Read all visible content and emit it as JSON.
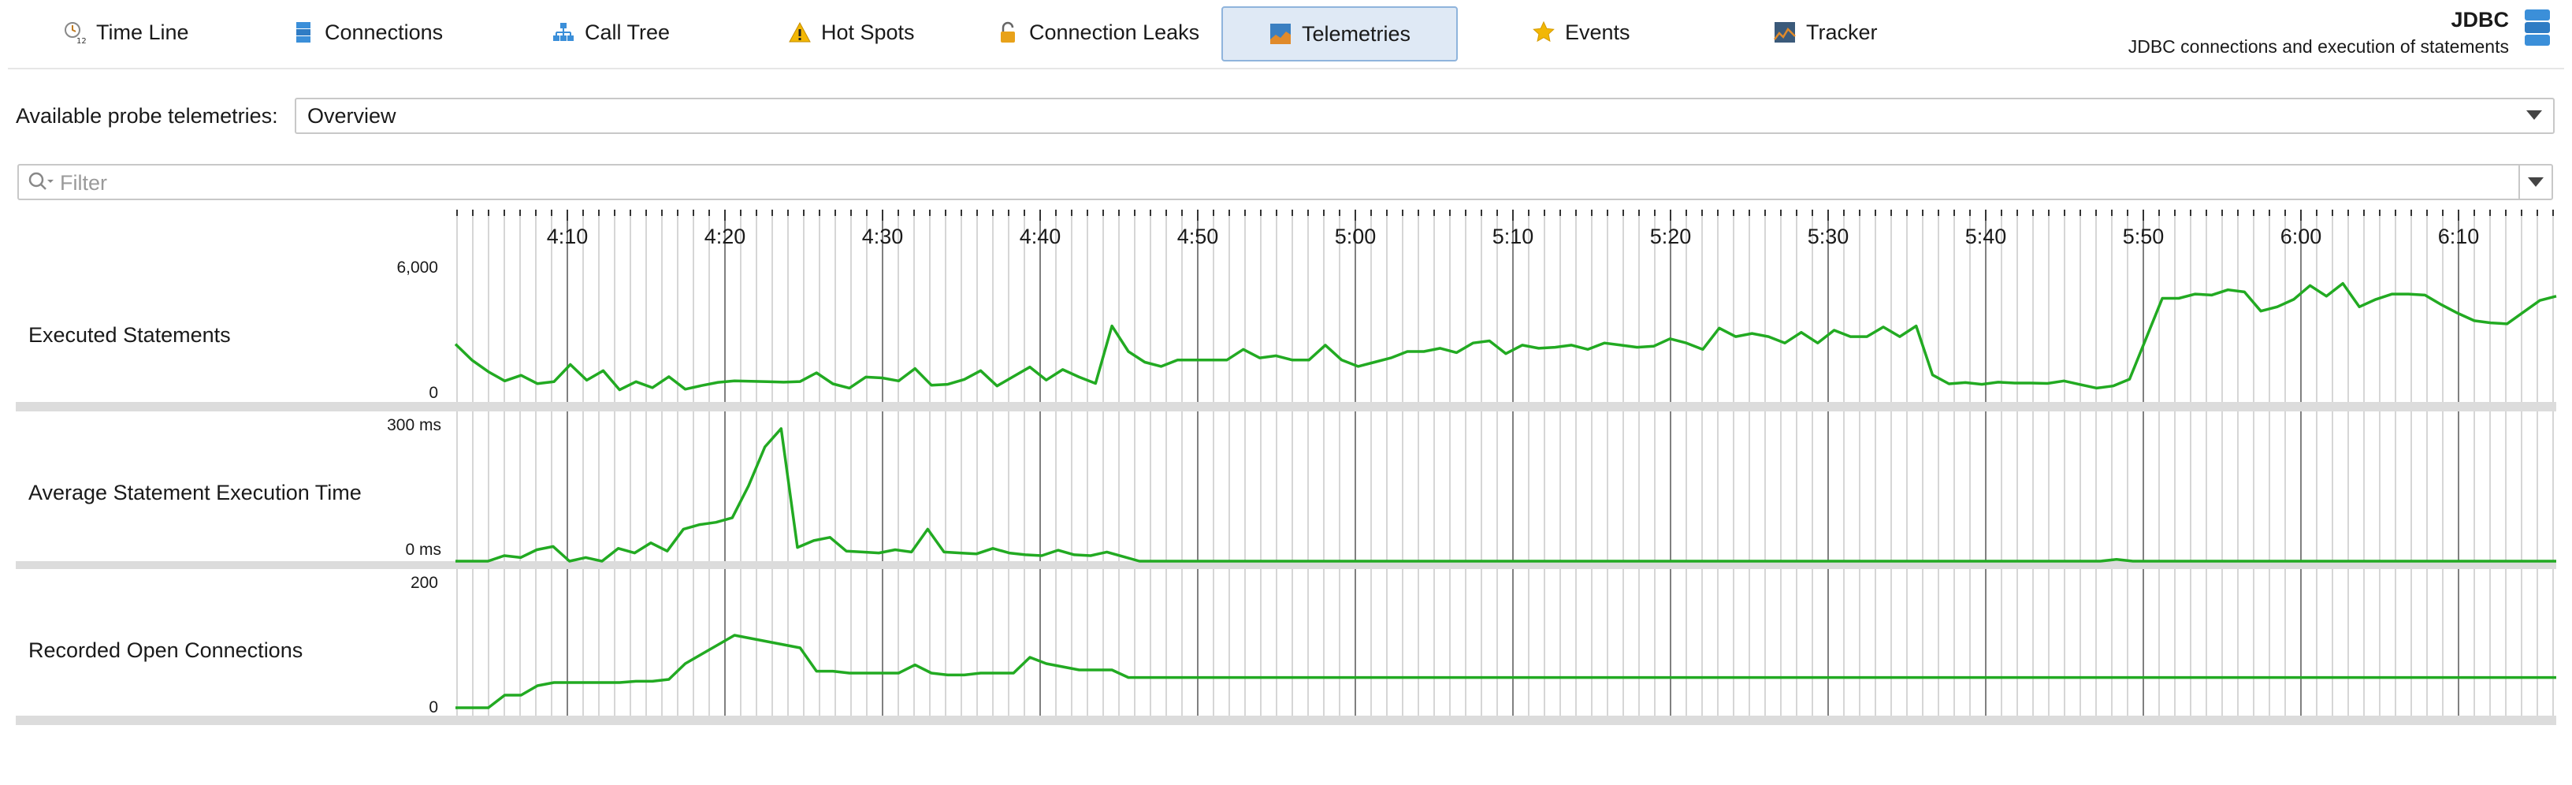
{
  "tabs": [
    {
      "label": "Time Line",
      "icon": "timeline-icon"
    },
    {
      "label": "Connections",
      "icon": "connections-icon"
    },
    {
      "label": "Call Tree",
      "icon": "call-tree-icon"
    },
    {
      "label": "Hot Spots",
      "icon": "warning-icon"
    },
    {
      "label": "Connection Leaks",
      "icon": "lock-icon"
    },
    {
      "label": "Telemetries",
      "icon": "telemetries-icon",
      "active": true
    },
    {
      "label": "Events",
      "icon": "star-icon"
    },
    {
      "label": "Tracker",
      "icon": "tracker-icon"
    }
  ],
  "module": {
    "title": "JDBC",
    "subtitle": "JDBC connections and execution of statements",
    "icon": "database-icon"
  },
  "probe": {
    "label": "Available probe telemetries:",
    "value": "Overview"
  },
  "filter": {
    "placeholder": "Filter"
  },
  "time_axis": {
    "ticks": [
      "4:10",
      "4:20",
      "4:30",
      "4:40",
      "4:50",
      "5:00",
      "5:10",
      "5:20",
      "5:30",
      "5:40",
      "5:50",
      "6:00",
      "6:10"
    ]
  },
  "colors": {
    "series": "#22aa22",
    "active_tab_bg": "#dfe9f5",
    "grid": "#c8c8c8",
    "major_grid": "#808080"
  },
  "chart_data": [
    {
      "type": "line",
      "title": "Executed Statements",
      "ylim": [
        0,
        6000
      ],
      "y_ticks": [
        "6,000",
        "0"
      ],
      "values": [
        2350,
        1600,
        1050,
        620,
        880,
        490,
        580,
        1390,
        650,
        1100,
        200,
        580,
        300,
        820,
        230,
        400,
        550,
        620,
        600,
        580,
        560,
        590,
        1000,
        480,
        280,
        800,
        760,
        620,
        1200,
        420,
        460,
        690,
        1100,
        380,
        830,
        1270,
        660,
        1150,
        800,
        500,
        3200,
        2000,
        1500,
        1300,
        1600,
        1600,
        1600,
        1600,
        2100,
        1700,
        1800,
        1600,
        1600,
        2300,
        1600,
        1300,
        1500,
        1700,
        2000,
        2000,
        2150,
        1950,
        2400,
        2500,
        1900,
        2300,
        2150,
        2200,
        2300,
        2100,
        2400,
        2300,
        2200,
        2250,
        2600,
        2400,
        2100,
        3100,
        2700,
        2850,
        2700,
        2400,
        2900,
        2400,
        3000,
        2700,
        2700,
        3150,
        2700,
        3200,
        900,
        480,
        540,
        460,
        560,
        520,
        520,
        500,
        620,
        450,
        280,
        380,
        700,
        2600,
        4500,
        4500,
        4700,
        4650,
        4900,
        4800,
        3900,
        4100,
        4450,
        5100,
        4600,
        5200,
        4100,
        4450,
        4700,
        4700,
        4650,
        4200,
        3800,
        3450,
        3350,
        3300,
        3850,
        4400,
        4600
      ]
    },
    {
      "type": "line",
      "title": "Average Statement Execution Time",
      "ylim": [
        0,
        300
      ],
      "y_ticks": [
        "300 ms",
        "0 ms"
      ],
      "values": [
        0,
        0,
        0,
        12,
        8,
        25,
        32,
        0,
        8,
        0,
        28,
        18,
        40,
        22,
        70,
        80,
        85,
        95,
        165,
        250,
        290,
        30,
        45,
        52,
        22,
        20,
        18,
        25,
        20,
        70,
        20,
        18,
        16,
        28,
        18,
        14,
        12,
        24,
        14,
        12,
        20,
        10,
        0,
        0,
        0,
        0,
        0,
        0,
        0,
        0,
        0,
        0,
        0,
        0,
        0,
        0,
        0,
        0,
        0,
        0,
        0,
        0,
        0,
        0,
        0,
        0,
        0,
        0,
        0,
        0,
        0,
        0,
        0,
        0,
        0,
        0,
        0,
        0,
        0,
        0,
        0,
        0,
        0,
        0,
        0,
        0,
        0,
        0,
        0,
        0,
        0,
        0,
        0,
        0,
        0,
        0,
        0,
        0,
        0,
        0,
        0,
        0,
        4,
        0,
        0,
        0,
        0,
        0,
        0,
        0,
        0,
        0,
        0,
        0,
        0,
        0,
        0,
        0,
        0,
        0,
        0,
        0,
        0,
        0,
        0,
        0,
        0,
        0,
        0,
        0
      ]
    },
    {
      "type": "line",
      "title": "Recorded Open Connections",
      "ylim": [
        0,
        200
      ],
      "y_ticks": [
        "200",
        "0"
      ],
      "values": [
        0,
        0,
        0,
        20,
        20,
        35,
        40,
        40,
        40,
        40,
        40,
        42,
        42,
        45,
        70,
        85,
        100,
        115,
        110,
        105,
        100,
        95,
        58,
        58,
        55,
        55,
        55,
        55,
        68,
        55,
        52,
        52,
        55,
        55,
        55,
        80,
        70,
        65,
        60,
        60,
        60,
        48,
        48,
        48,
        48,
        48,
        48,
        48,
        48,
        48,
        48,
        48,
        48,
        48,
        48,
        48,
        48,
        48,
        48,
        48,
        48,
        48,
        48,
        48,
        48,
        48,
        48,
        48,
        48,
        48,
        48,
        48,
        48,
        48,
        48,
        48,
        48,
        48,
        48,
        48,
        48,
        48,
        48,
        48,
        48,
        48,
        48,
        48,
        48,
        48,
        48,
        48,
        48,
        48,
        48,
        48,
        48,
        48,
        48,
        48,
        48,
        48,
        48,
        48,
        48,
        48,
        48,
        48,
        48,
        48,
        48,
        48,
        48,
        48,
        48,
        48,
        48,
        48,
        48,
        48,
        48,
        48,
        48,
        48,
        48,
        48,
        48,
        48,
        48
      ]
    }
  ]
}
